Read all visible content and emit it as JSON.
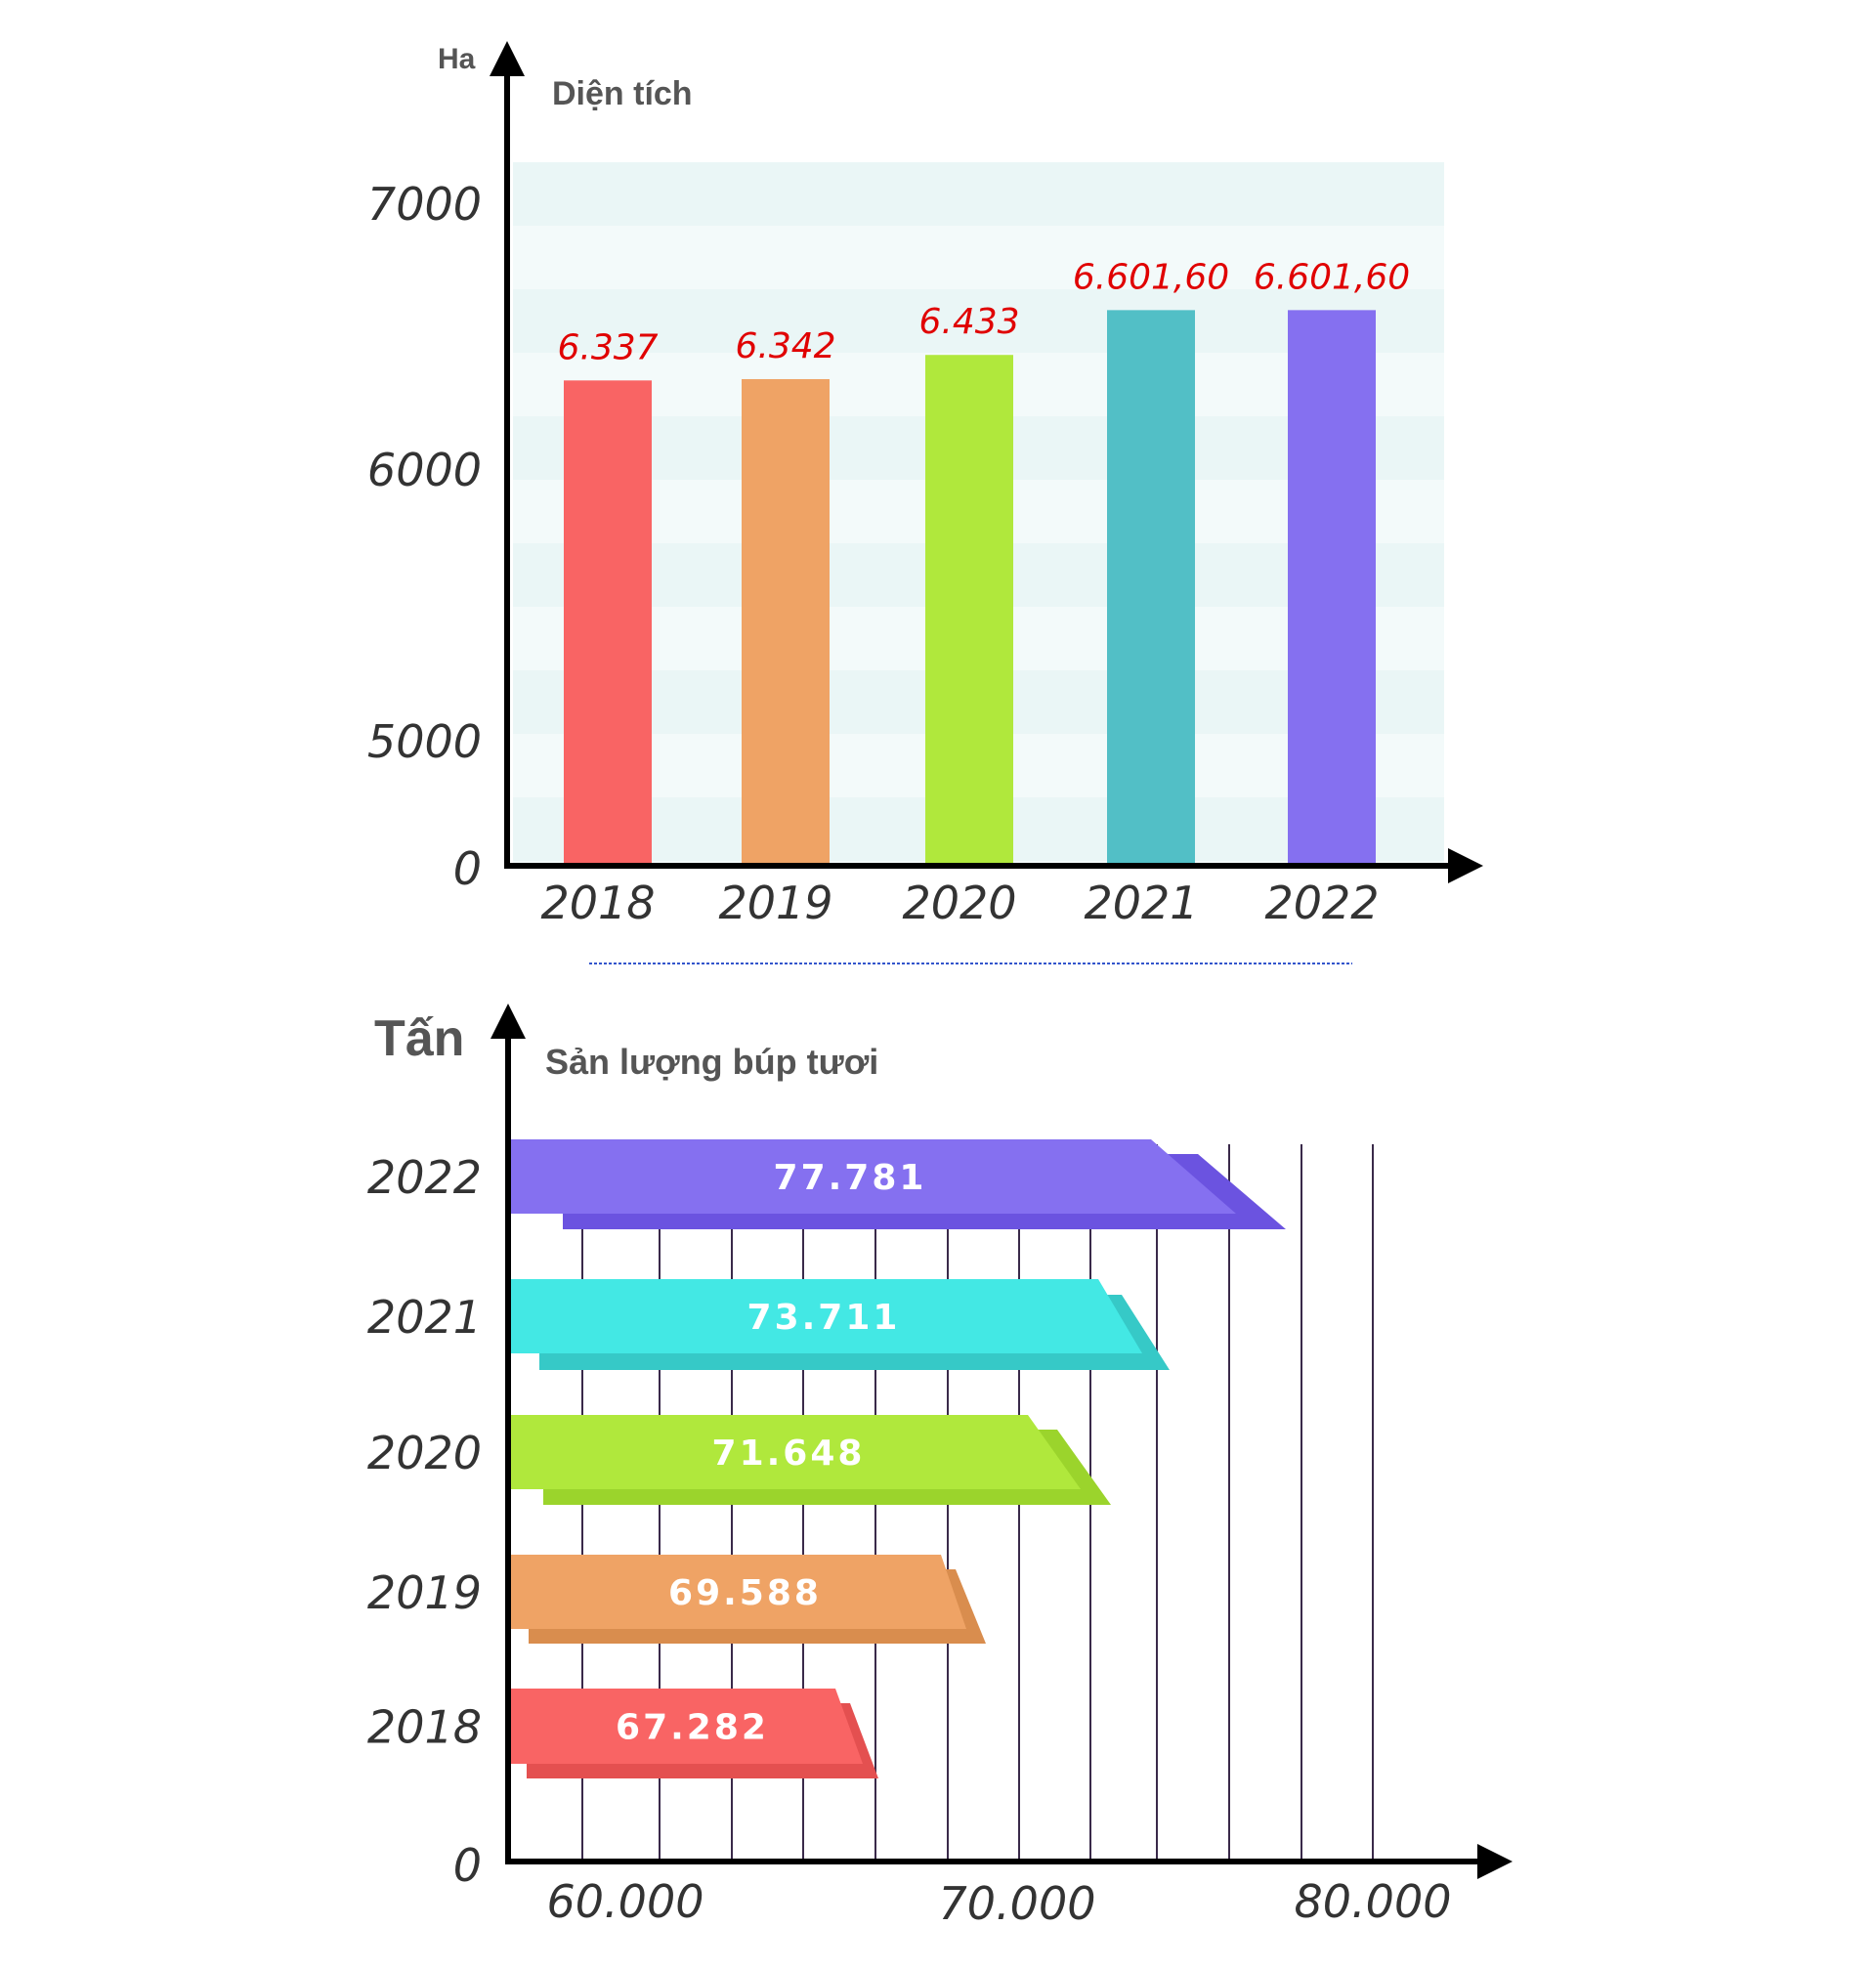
{
  "chart_data": [
    {
      "type": "bar",
      "title": "Diện tích",
      "ylabel": "Ha",
      "xlabel": "",
      "categories": [
        "2018",
        "2019",
        "2020",
        "2021",
        "2022"
      ],
      "values": [
        6337,
        6342,
        6433,
        6601.6,
        6601.6
      ],
      "value_labels": [
        "6.337",
        "6.342",
        "6.433",
        "6.601,60",
        "6.601,60"
      ],
      "colors": [
        "#f96464",
        "#efa365",
        "#b0e83c",
        "#52bfc6",
        "#8570f0"
      ],
      "yticks": [
        "0",
        "5000",
        "6000",
        "7000"
      ],
      "grid": false
    },
    {
      "type": "bar",
      "orientation": "horizontal",
      "title": "Sản lượng búp tươi",
      "ylabel": "Tấn",
      "xlabel": "",
      "categories": [
        "2022",
        "2021",
        "2020",
        "2019",
        "2018"
      ],
      "values": [
        77781,
        73711,
        71648,
        69588,
        67282
      ],
      "value_labels": [
        "77.781",
        "73.711",
        "71.648",
        "69.588",
        "67.282"
      ],
      "colors": [
        "#8570f0",
        "#43e8e4",
        "#b0e83c",
        "#efa365",
        "#f96464"
      ],
      "shadow_colors": [
        "#6b53e0",
        "#36c9c7",
        "#9bd42c",
        "#d98d4e",
        "#e45050"
      ],
      "xticks": [
        "60.000",
        "70.000",
        "80.000"
      ],
      "origin_label": "0",
      "grid": true
    }
  ]
}
